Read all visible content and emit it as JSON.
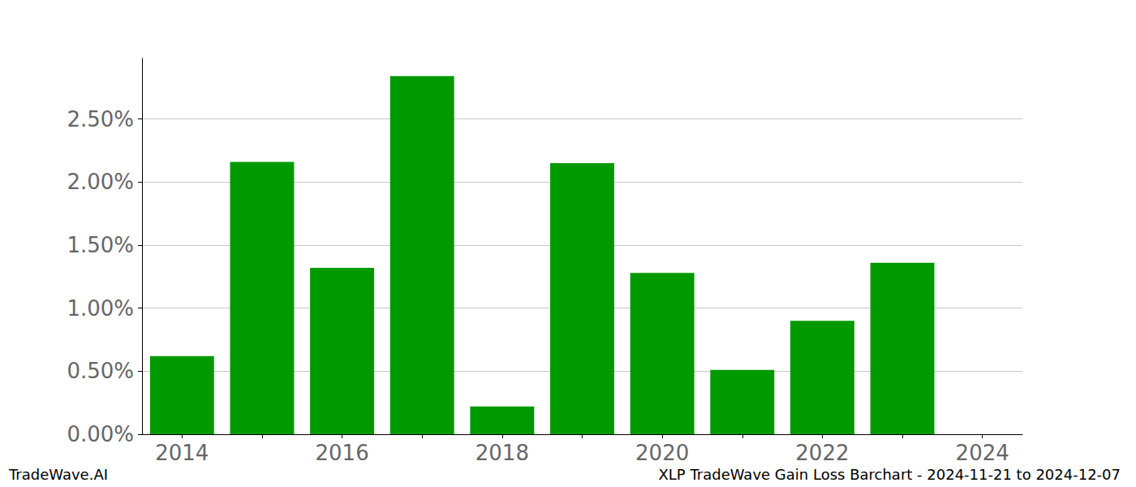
{
  "chart_data": {
    "type": "bar",
    "title": "XLP TradeWave Gain Loss Barchart - 2024-11-21 to 2024-12-07",
    "annotations": [
      "TradeWave.AI"
    ],
    "categories": [
      "2014",
      null,
      "2016",
      null,
      "2018",
      null,
      "2020",
      null,
      "2022",
      null,
      "2024"
    ],
    "values": [
      0.62,
      2.16,
      1.32,
      2.84,
      0.22,
      2.15,
      1.28,
      0.51,
      0.9,
      1.36,
      null
    ],
    "color": "#009900",
    "ylim": [
      0,
      2.98
    ],
    "yticks": [
      {
        "value": 0,
        "label": "0.00%"
      },
      {
        "value": 0.5,
        "label": "0.50%"
      },
      {
        "value": 1.0,
        "label": "1.00%"
      },
      {
        "value": 1.5,
        "label": "1.50%"
      },
      {
        "value": 2.0,
        "label": "2.00%"
      },
      {
        "value": 2.5,
        "label": "2.50%"
      }
    ],
    "grid": true
  }
}
